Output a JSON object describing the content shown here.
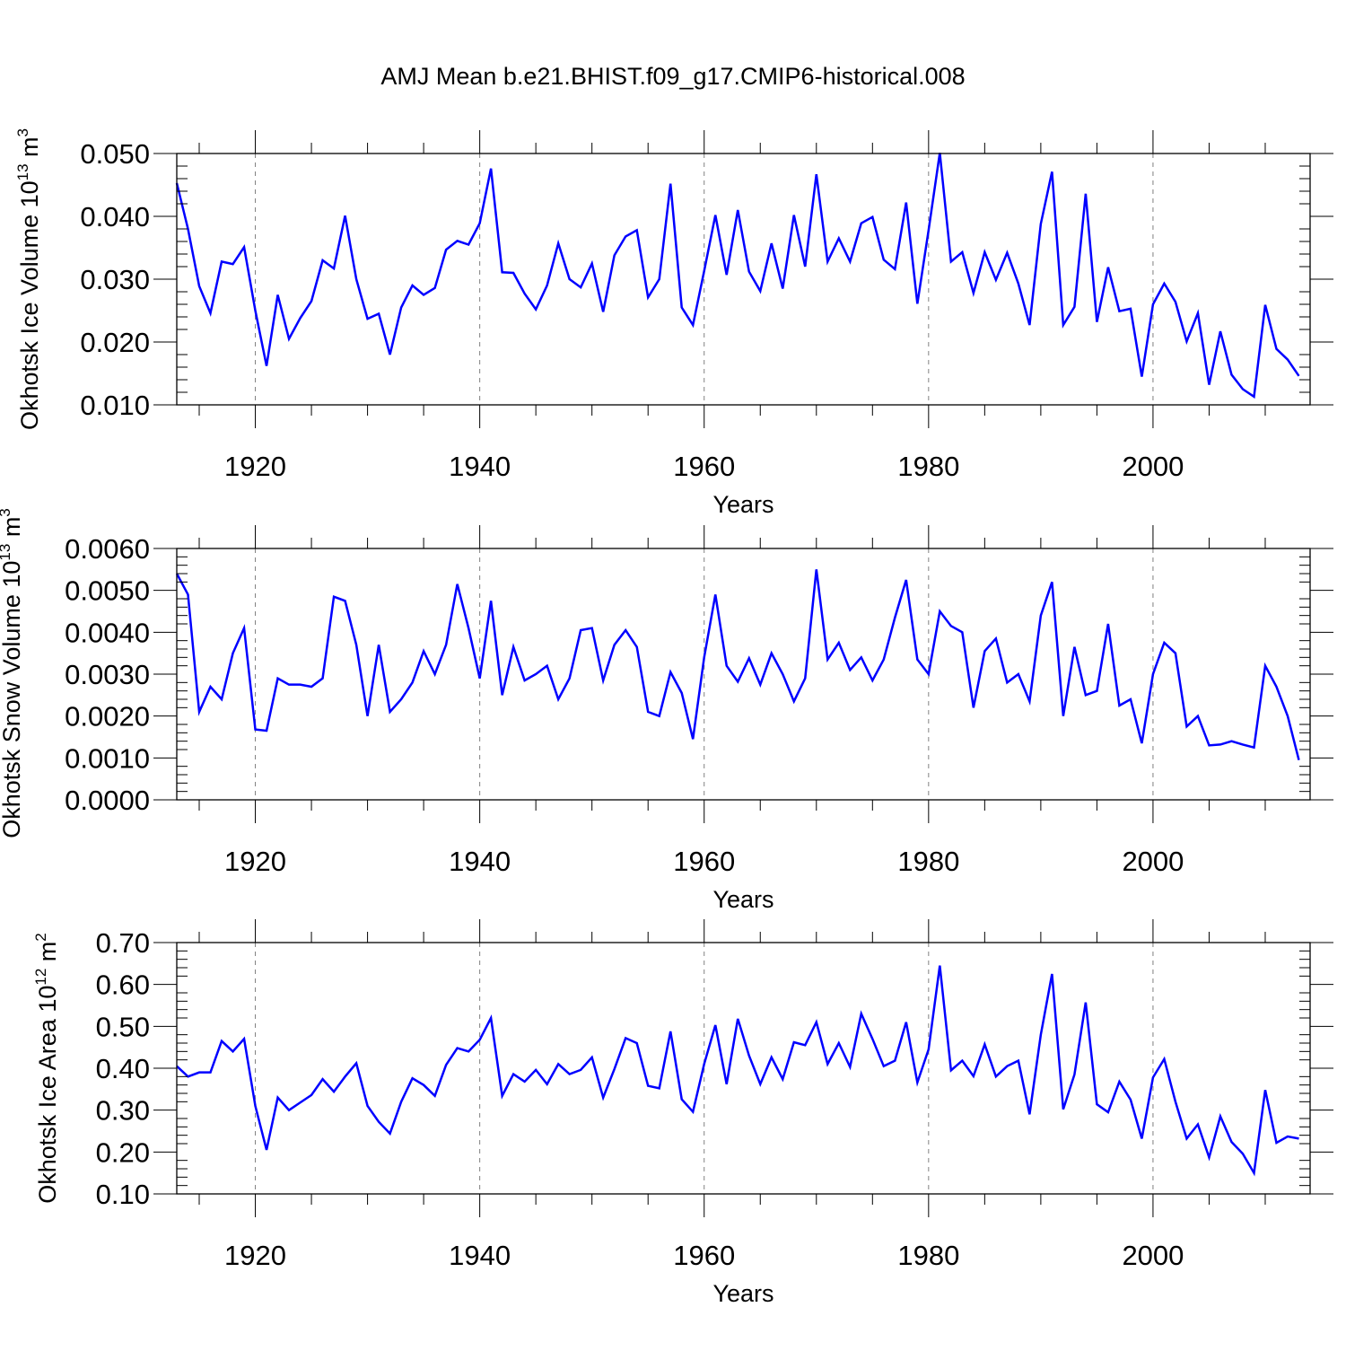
{
  "title": "AMJ Mean b.e21.BHIST.f09_g17.CMIP6-historical.008",
  "colors": {
    "line": "#0000ff",
    "axis": "#000000",
    "grid": "#808080"
  },
  "chart_data": [
    {
      "type": "line",
      "title": "",
      "xlabel": "Years",
      "ylabel": "Okhotsk Ice Volume 10",
      "ylabel_sup": "13",
      "ylabel_unit": "m",
      "ylabel_unit_sup": "3",
      "xlim": [
        1913,
        2014
      ],
      "ylim": [
        0.01,
        0.05
      ],
      "yticks": [
        0.01,
        0.02,
        0.03,
        0.04,
        0.05
      ],
      "ytick_labels": [
        "0.010",
        "0.020",
        "0.030",
        "0.040",
        "0.050"
      ],
      "xticks": [
        1920,
        1940,
        1960,
        1980,
        2000
      ],
      "xtick_labels": [
        "1920",
        "1940",
        "1960",
        "1980",
        "2000"
      ],
      "grid": "vertical dashed at major x ticks",
      "series": [
        {
          "name": "Okhotsk Ice Volume",
          "x_start": 1913,
          "values": [
            0.0453,
            0.038,
            0.0289,
            0.0246,
            0.0328,
            0.0324,
            0.0351,
            0.025,
            0.0162,
            0.0275,
            0.0205,
            0.0238,
            0.0265,
            0.033,
            0.0317,
            0.0401,
            0.03,
            0.0237,
            0.0245,
            0.018,
            0.0255,
            0.029,
            0.0275,
            0.0286,
            0.0347,
            0.0361,
            0.0355,
            0.0389,
            0.0476,
            0.0311,
            0.031,
            0.0277,
            0.0252,
            0.029,
            0.0357,
            0.03,
            0.0287,
            0.0325,
            0.0248,
            0.0338,
            0.0368,
            0.0378,
            0.0271,
            0.03,
            0.0452,
            0.0255,
            0.0227,
            0.0313,
            0.0402,
            0.0307,
            0.041,
            0.0312,
            0.0281,
            0.0357,
            0.0285,
            0.0402,
            0.032,
            0.0467,
            0.0328,
            0.0365,
            0.0328,
            0.0389,
            0.0399,
            0.0331,
            0.0316,
            0.0422,
            0.0261,
            0.0378,
            0.0501,
            0.0328,
            0.0343,
            0.0278,
            0.0343,
            0.0299,
            0.0342,
            0.0293,
            0.0227,
            0.0388,
            0.0471,
            0.0227,
            0.0256,
            0.0436,
            0.0232,
            0.0319,
            0.0249,
            0.0253,
            0.0145,
            0.026,
            0.0293,
            0.0264,
            0.0201,
            0.0246,
            0.0132,
            0.0217,
            0.0148,
            0.0125,
            0.0113,
            0.0259,
            0.0189,
            0.0172,
            0.0146
          ]
        }
      ]
    },
    {
      "type": "line",
      "title": "",
      "xlabel": "Years",
      "ylabel": "Okhotsk Snow Volume 10",
      "ylabel_sup": "13",
      "ylabel_unit": "m",
      "ylabel_unit_sup": "3",
      "xlim": [
        1913,
        2014
      ],
      "ylim": [
        0.0,
        0.006
      ],
      "yticks": [
        0.0,
        0.001,
        0.002,
        0.003,
        0.004,
        0.005,
        0.006
      ],
      "ytick_labels": [
        "0.0000",
        "0.0010",
        "0.0020",
        "0.0030",
        "0.0040",
        "0.0050",
        "0.0060"
      ],
      "xticks": [
        1920,
        1940,
        1960,
        1980,
        2000
      ],
      "xtick_labels": [
        "1920",
        "1940",
        "1960",
        "1980",
        "2000"
      ],
      "grid": "vertical dashed at major x ticks",
      "series": [
        {
          "name": "Okhotsk Snow Volume",
          "x_start": 1913,
          "values": [
            0.0054,
            0.0049,
            0.0021,
            0.0027,
            0.0024,
            0.0035,
            0.0041,
            0.00168,
            0.00165,
            0.0029,
            0.00275,
            0.00275,
            0.0027,
            0.0029,
            0.00485,
            0.00475,
            0.0037,
            0.002,
            0.0037,
            0.0021,
            0.0024,
            0.0028,
            0.00355,
            0.003,
            0.0037,
            0.00515,
            0.0041,
            0.0029,
            0.00475,
            0.0025,
            0.00365,
            0.00285,
            0.003,
            0.0032,
            0.0024,
            0.0029,
            0.00405,
            0.0041,
            0.00285,
            0.0037,
            0.00405,
            0.00365,
            0.0021,
            0.002,
            0.00305,
            0.00255,
            0.00145,
            0.0034,
            0.0049,
            0.0032,
            0.00282,
            0.00338,
            0.00275,
            0.0035,
            0.003,
            0.00235,
            0.0029,
            0.0055,
            0.00335,
            0.00375,
            0.0031,
            0.0034,
            0.00285,
            0.00335,
            0.00435,
            0.00525,
            0.00335,
            0.003,
            0.0045,
            0.00415,
            0.004,
            0.0022,
            0.00355,
            0.00385,
            0.0028,
            0.003,
            0.00235,
            0.0044,
            0.0052,
            0.002,
            0.00365,
            0.0025,
            0.0026,
            0.0042,
            0.00225,
            0.0024,
            0.00135,
            0.003,
            0.00375,
            0.0035,
            0.00175,
            0.002,
            0.0013,
            0.00132,
            0.0014,
            0.00132,
            0.00125,
            0.0032,
            0.0027,
            0.002,
            0.00095
          ]
        }
      ]
    },
    {
      "type": "line",
      "title": "",
      "xlabel": "Years",
      "ylabel": "Okhotsk Ice Area 10",
      "ylabel_sup": "12",
      "ylabel_unit": "m",
      "ylabel_unit_sup": "2",
      "xlim": [
        1913,
        2014
      ],
      "ylim": [
        0.1,
        0.7
      ],
      "yticks": [
        0.1,
        0.2,
        0.3,
        0.4,
        0.5,
        0.6,
        0.7
      ],
      "ytick_labels": [
        "0.10",
        "0.20",
        "0.30",
        "0.40",
        "0.50",
        "0.60",
        "0.70"
      ],
      "xticks": [
        1920,
        1940,
        1960,
        1980,
        2000
      ],
      "xtick_labels": [
        "1920",
        "1940",
        "1960",
        "1980",
        "2000"
      ],
      "grid": "vertical dashed at major x ticks",
      "series": [
        {
          "name": "Okhotsk Ice Area",
          "x_start": 1913,
          "values": [
            0.405,
            0.38,
            0.39,
            0.39,
            0.465,
            0.44,
            0.47,
            0.31,
            0.205,
            0.33,
            0.3,
            0.318,
            0.336,
            0.374,
            0.344,
            0.38,
            0.412,
            0.31,
            0.272,
            0.244,
            0.32,
            0.376,
            0.36,
            0.334,
            0.408,
            0.448,
            0.44,
            0.468,
            0.52,
            0.334,
            0.386,
            0.368,
            0.396,
            0.362,
            0.41,
            0.386,
            0.396,
            0.426,
            0.33,
            0.398,
            0.472,
            0.46,
            0.358,
            0.352,
            0.488,
            0.326,
            0.296,
            0.41,
            0.503,
            0.362,
            0.518,
            0.43,
            0.362,
            0.426,
            0.374,
            0.462,
            0.455,
            0.51,
            0.41,
            0.46,
            0.403,
            0.53,
            0.47,
            0.405,
            0.418,
            0.51,
            0.366,
            0.445,
            0.645,
            0.395,
            0.418,
            0.381,
            0.457,
            0.38,
            0.405,
            0.418,
            0.29,
            0.48,
            0.625,
            0.302,
            0.385,
            0.557,
            0.314,
            0.295,
            0.368,
            0.325,
            0.232,
            0.378,
            0.422,
            0.32,
            0.232,
            0.266,
            0.187,
            0.285,
            0.224,
            0.196,
            0.15,
            0.348,
            0.222,
            0.237,
            0.232
          ]
        }
      ]
    }
  ]
}
